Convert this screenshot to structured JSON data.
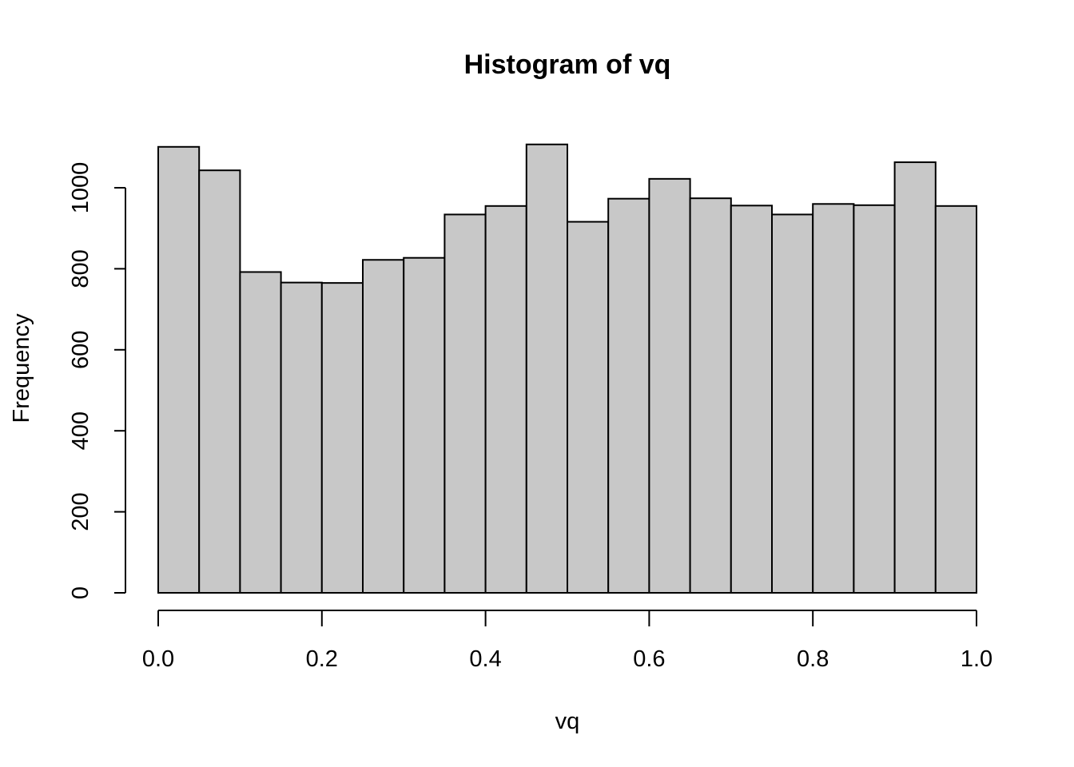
{
  "chart_data": {
    "type": "bar",
    "title": "Histogram of vq",
    "xlabel": "vq",
    "ylabel": "Frequency",
    "bin_edges": [
      0.0,
      0.05,
      0.1,
      0.15,
      0.2,
      0.25,
      0.3,
      0.35,
      0.4,
      0.45,
      0.5,
      0.55,
      0.6,
      0.65,
      0.7,
      0.75,
      0.8,
      0.85,
      0.9,
      0.95,
      1.0
    ],
    "values": [
      1101,
      1043,
      792,
      766,
      765,
      822,
      827,
      934,
      955,
      1107,
      916,
      973,
      1022,
      974,
      956,
      934,
      960,
      957,
      1063,
      955
    ],
    "xlim": [
      0,
      1
    ],
    "ylim": [
      0,
      1000
    ],
    "x_ticks": [
      "0.0",
      "0.2",
      "0.4",
      "0.6",
      "0.8",
      "1.0"
    ],
    "y_ticks": [
      "0",
      "200",
      "400",
      "600",
      "800",
      "1000"
    ],
    "grid": false,
    "bar_color": "#c8c8c8"
  }
}
